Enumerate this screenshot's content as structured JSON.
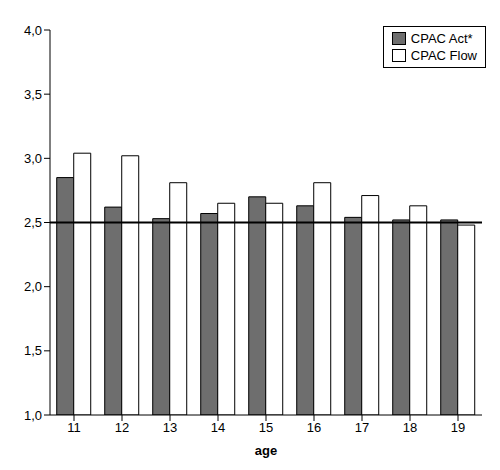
{
  "chart_data": {
    "type": "bar",
    "x_label": "age",
    "categories": [
      "11",
      "12",
      "13",
      "14",
      "15",
      "16",
      "17",
      "18",
      "19"
    ],
    "series": [
      {
        "name": "CPAC Act*",
        "color": "#6e6e6e",
        "values": [
          2.85,
          2.62,
          2.53,
          2.57,
          2.7,
          2.63,
          2.54,
          2.52,
          2.52
        ]
      },
      {
        "name": "CPAC Flow",
        "color": "#ffffff",
        "values": [
          3.04,
          3.02,
          2.81,
          2.65,
          2.65,
          2.81,
          2.71,
          2.63,
          2.48
        ]
      }
    ],
    "ylim": [
      1,
      4
    ],
    "yticks": [
      {
        "value": 1,
        "label": "1,0"
      },
      {
        "value": 1.5,
        "label": "1,5"
      },
      {
        "value": 2,
        "label": "2,0"
      },
      {
        "value": 2.5,
        "label": "2,5"
      },
      {
        "value": 3,
        "label": "3,0"
      },
      {
        "value": 3.5,
        "label": "3,5"
      },
      {
        "value": 4,
        "label": "4,0"
      }
    ],
    "reference_line": 2.5,
    "grid": false,
    "legend": "top-right"
  }
}
